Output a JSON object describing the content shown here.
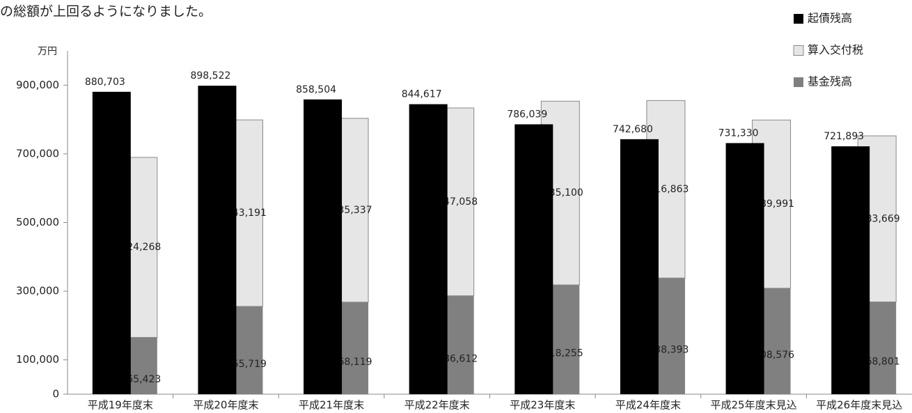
{
  "chart_data": {
    "type": "bar",
    "caption": "の総額が上回るようになりました。",
    "y_unit": "万円",
    "categories": [
      "平成19年度末",
      "平成20年度末",
      "平成21年度末",
      "平成22年度末",
      "平成23年度末",
      "平成24年度末",
      "平成25年度末見込",
      "平成26年度末見込"
    ],
    "series": [
      {
        "name": "起債残高",
        "color": "#000000",
        "values": [
          880703,
          898522,
          858504,
          844617,
          786039,
          742680,
          731330,
          721893
        ],
        "value_labels": [
          "880,703",
          "898,522",
          "858,504",
          "844,617",
          "786,039",
          "742,680",
          "731,330",
          "721,893"
        ]
      },
      {
        "name": "算入交付税",
        "color": "#e6e6e6",
        "values": [
          524268,
          543191,
          535337,
          547058,
          535100,
          516863,
          489991,
          483669
        ],
        "value_labels": [
          "524,268",
          "543,191",
          "535,337",
          "547,058",
          "535,100",
          "516,863",
          "489,991",
          "483,669"
        ]
      },
      {
        "name": "基金残高",
        "color": "#808080",
        "values": [
          165423,
          255719,
          268119,
          286612,
          318255,
          338393,
          308576,
          268801
        ],
        "value_labels": [
          "165,423",
          "255,719",
          "268,119",
          "286,612",
          "318,255",
          "338,393",
          "308,576",
          "268,801"
        ]
      }
    ],
    "ylim": [
      0,
      1000000
    ],
    "yticks": [
      0,
      {
        "value": 100000,
        "label": "100,000"
      },
      {
        "value": 300000,
        "label": "300,000"
      },
      {
        "value": 500000,
        "label": "500,000"
      },
      {
        "value": 700000,
        "label": "700,000"
      },
      {
        "value": 900000,
        "label": "900,000"
      }
    ],
    "legend": "top-right"
  }
}
